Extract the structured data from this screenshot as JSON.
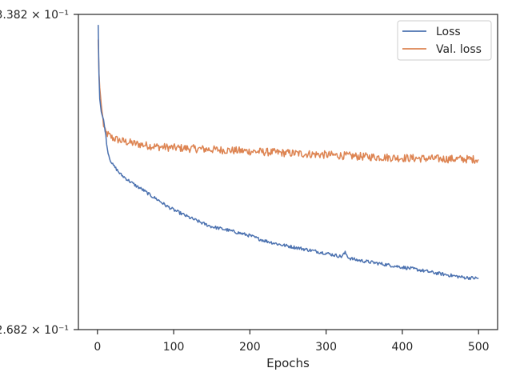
{
  "chart_data": {
    "type": "line",
    "title": "",
    "xlabel": "Epochs",
    "ylabel": "",
    "xlim": [
      -25,
      525
    ],
    "ylim": [
      0.2682,
      0.3382
    ],
    "yscale": "log",
    "grid": false,
    "legend": {
      "placement": "top-right",
      "entries": [
        "Loss",
        "Val. loss"
      ]
    },
    "x_ticks": [
      {
        "value": 0,
        "label": "0"
      },
      {
        "value": 100,
        "label": "100"
      },
      {
        "value": 200,
        "label": "200"
      },
      {
        "value": 300,
        "label": "300"
      },
      {
        "value": 400,
        "label": "400"
      },
      {
        "value": 500,
        "label": "500"
      }
    ],
    "y_ticks": [
      {
        "value": 0.3382,
        "label": "3.382 × 10⁻¹"
      },
      {
        "value": 0.2682,
        "label": "2.682 × 10⁻¹"
      }
    ],
    "series": [
      {
        "name": "Loss",
        "color": "#4c72b0",
        "x": [
          1,
          2,
          3,
          5,
          8,
          10,
          13,
          16,
          20,
          25,
          30,
          40,
          50,
          60,
          70,
          80,
          90,
          100,
          110,
          120,
          130,
          140,
          150,
          170,
          190,
          200,
          210,
          220,
          240,
          260,
          280,
          300,
          320,
          325,
          330,
          340,
          360,
          380,
          400,
          420,
          440,
          460,
          480,
          500
        ],
        "y": [
          0.3356,
          0.3235,
          0.3178,
          0.3148,
          0.3128,
          0.3107,
          0.3063,
          0.3042,
          0.3028,
          0.3018,
          0.3007,
          0.2994,
          0.2982,
          0.2972,
          0.296,
          0.295,
          0.2938,
          0.2929,
          0.2921,
          0.2913,
          0.2906,
          0.2899,
          0.2893,
          0.2886,
          0.2878,
          0.2874,
          0.2868,
          0.2863,
          0.2855,
          0.2849,
          0.2843,
          0.2837,
          0.283,
          0.2838,
          0.2827,
          0.2823,
          0.2818,
          0.2813,
          0.2808,
          0.2803,
          0.2797,
          0.2792,
          0.2787,
          0.2785
        ]
      },
      {
        "name": "Val. loss",
        "color": "#dd8452",
        "x": [
          1,
          2,
          3,
          5,
          8,
          10,
          15,
          20,
          30,
          50,
          70,
          80,
          100,
          150,
          200,
          250,
          300,
          325,
          350,
          400,
          450,
          500
        ],
        "y": [
          0.332,
          0.324,
          0.3205,
          0.3165,
          0.3118,
          0.3102,
          0.3094,
          0.3088,
          0.3082,
          0.3075,
          0.307,
          0.3068,
          0.3066,
          0.3062,
          0.3058,
          0.3054,
          0.305,
          0.3048,
          0.3046,
          0.3043,
          0.3041,
          0.304
        ]
      }
    ]
  }
}
